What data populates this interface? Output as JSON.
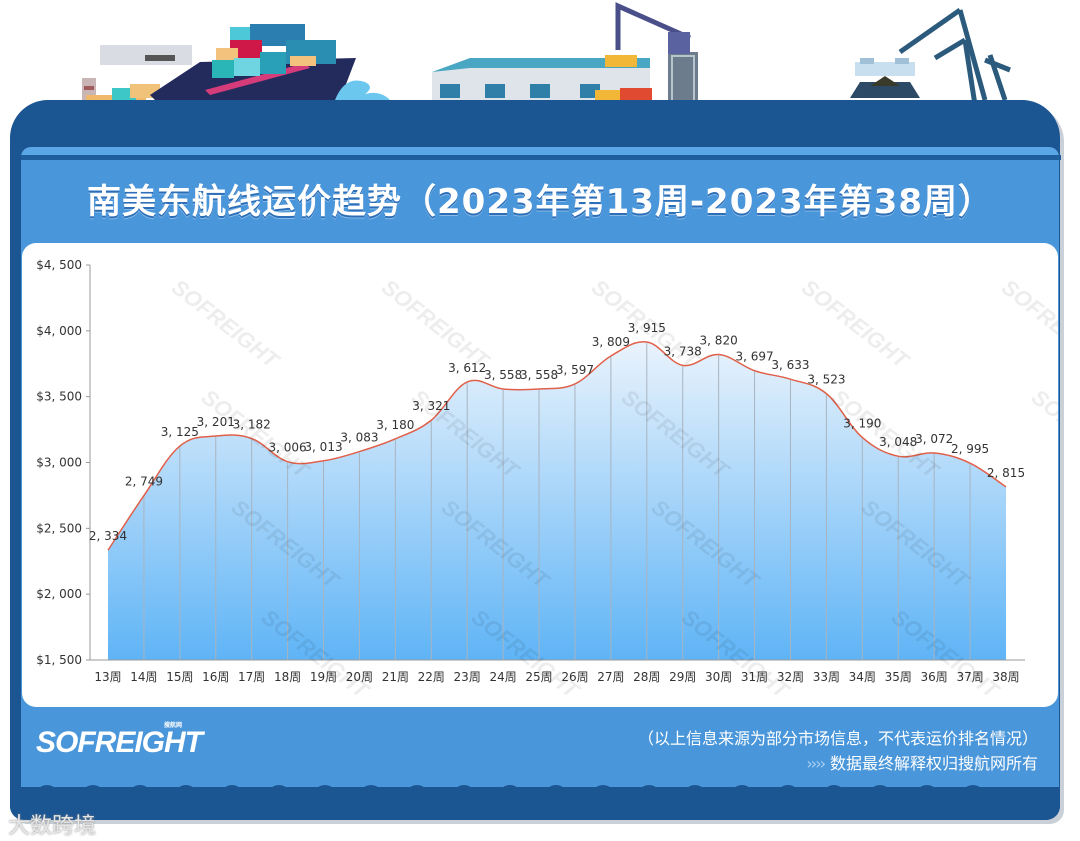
{
  "page": {
    "title": "南美东航线运价趋势（2023年第13周-2023年第38周）",
    "footer": {
      "logo_text": "SOFREIGHT",
      "logo_tagline": "搜航网",
      "note": "（以上信息来源为部分市场信息，不代表运价排名情况）",
      "credit_arrows": "››››",
      "credit": "数据最终解释权归搜航网所有"
    },
    "source_watermark": "大数跨境",
    "chart_watermark": "SOFREIGHT"
  },
  "colors": {
    "frame_dark": "#1b5592",
    "frame_light": "#4a96da",
    "line": "#e0604a",
    "fill_top": "#eaf3fc",
    "fill_bottom": "#5fb4f6",
    "grid_drop": "#a8b4c0",
    "axis": "#999999",
    "label": "#333333"
  },
  "chart_data": {
    "type": "area",
    "title": "南美东航线运价趋势（2023年第13周-2023年第38周）",
    "xlabel": "",
    "ylabel": "",
    "categories": [
      "13周",
      "14周",
      "15周",
      "16周",
      "17周",
      "18周",
      "19周",
      "20周",
      "21周",
      "22周",
      "23周",
      "24周",
      "25周",
      "26周",
      "27周",
      "28周",
      "29周",
      "30周",
      "31周",
      "32周",
      "33周",
      "34周",
      "35周",
      "36周",
      "37周",
      "38周"
    ],
    "series": [
      {
        "name": "南美东航线运价",
        "values": [
          2334,
          2749,
          3125,
          3201,
          3182,
          3006,
          3013,
          3083,
          3180,
          3321,
          3612,
          3558,
          3558,
          3597,
          3809,
          3915,
          3738,
          3820,
          3697,
          3633,
          3523,
          3190,
          3048,
          3072,
          2995,
          2815
        ]
      }
    ],
    "value_labels": [
      "2, 334",
      "2, 749",
      "3, 125",
      "3, 201",
      "3, 182",
      "3, 006",
      "3, 013",
      "3, 083",
      "3, 180",
      "3, 321",
      "3, 612",
      "3, 558",
      "3, 558",
      "3, 597",
      "3, 809",
      "3, 915",
      "3, 738",
      "3, 820",
      "3, 697",
      "3, 633",
      "3, 523",
      "3, 190",
      "3, 048",
      "3, 072",
      "2, 995",
      "2, 815"
    ],
    "ylim": [
      1500,
      4500
    ],
    "yticks": [
      1500,
      2000,
      2500,
      3000,
      3500,
      4000,
      4500
    ],
    "ytick_labels": [
      "$1, 500",
      "$2, 000",
      "$2, 500",
      "$3, 000",
      "$3, 500",
      "$4, 000",
      "$4, 500"
    ],
    "grid": false,
    "smooth": true,
    "legend": "none"
  }
}
